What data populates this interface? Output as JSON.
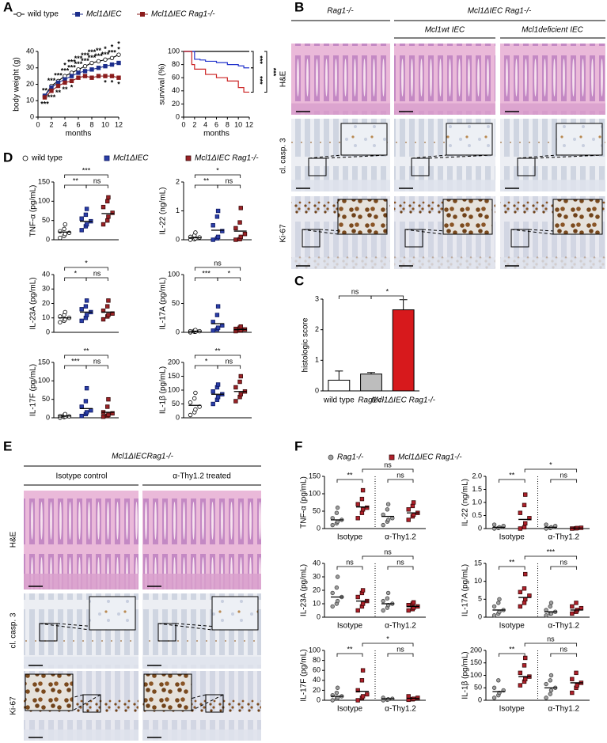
{
  "panel_labels": [
    "A",
    "B",
    "C",
    "D",
    "E",
    "F"
  ],
  "panel_b": {
    "headers": [
      "Rag1-/-",
      "Mcl1ΔIEC Rag1-/-"
    ],
    "subheaders": [
      "Mcl1wt IEC",
      "Mcl1deficient IEC"
    ],
    "rows": [
      "H&E",
      "cl. casp. 3",
      "Ki-67"
    ]
  },
  "panel_e": {
    "header": "Mcl1ΔIECRag1-/-",
    "columns": [
      "Isotype control",
      "α-Thy1.2 treated"
    ],
    "rows": [
      "H&E",
      "cl. casp. 3",
      "Ki-67"
    ]
  },
  "chart_data": [
    {
      "type": "line",
      "ylabel": "body weight (g)",
      "xlabel": "months",
      "legend": "top",
      "x": [
        1,
        2,
        3,
        4,
        5,
        6,
        7,
        8,
        9,
        10,
        11,
        12
      ],
      "xlim": [
        0,
        12
      ],
      "xticks": [
        0,
        2,
        4,
        6,
        8,
        10,
        12
      ],
      "ylim": [
        0,
        40
      ],
      "yticks": [
        0,
        10,
        20,
        30,
        40
      ],
      "series": [
        {
          "name": "wild type",
          "color": "#000000",
          "fill": "#ffffff",
          "marker": "circle",
          "values": [
            13,
            19,
            22,
            25,
            27,
            29,
            31,
            33,
            34,
            35,
            36,
            38
          ]
        },
        {
          "name": "Mcl1ΔIEC",
          "color": "#1c2e8c",
          "fill": "#1c2e8c",
          "marker": "square",
          "values": [
            13,
            18,
            21,
            23,
            25,
            27,
            28,
            29,
            30,
            31,
            32,
            33
          ]
        },
        {
          "name": "Mcl1ΔIEC Rag1-/-",
          "color": "#8b1c1c",
          "fill": "#8b1c1c",
          "marker": "square",
          "values": [
            12,
            16,
            19,
            21,
            22,
            24,
            25,
            24,
            25,
            25,
            25,
            24
          ]
        }
      ],
      "significance": [
        {
          "color": "#d62728",
          "labels": [
            "**",
            "***",
            "***",
            "***",
            "***",
            "***",
            "***",
            "***",
            "***",
            "***",
            "***",
            "*"
          ]
        },
        {
          "color": "#3333cc",
          "labels": [
            null,
            null,
            null,
            "*",
            "***",
            "***",
            "***",
            "***",
            "**",
            "*",
            "*",
            "*"
          ]
        },
        {
          "color": "#a020c0",
          "labels": [
            "***",
            "***",
            "**",
            "**",
            "*",
            null,
            null,
            null,
            null,
            "*",
            "*",
            "*"
          ]
        }
      ]
    },
    {
      "type": "line",
      "step": true,
      "ylabel": "survival (%)",
      "xlabel": "months",
      "xlim": [
        0,
        12
      ],
      "xticks": [
        0,
        2,
        4,
        6,
        8,
        10,
        12
      ],
      "ylim": [
        0,
        100
      ],
      "yticks": [
        0,
        20,
        40,
        60,
        80,
        100
      ],
      "series": [
        {
          "color": "#000000",
          "x": [
            0,
            12
          ],
          "values": [
            100,
            100
          ]
        },
        {
          "color": "#2233cc",
          "x": [
            0,
            1,
            2,
            3,
            4,
            6,
            8,
            10,
            11,
            12
          ],
          "values": [
            100,
            100,
            88,
            87,
            85,
            83,
            80,
            78,
            75,
            75
          ]
        },
        {
          "color": "#cc2222",
          "x": [
            0,
            1,
            1.5,
            2,
            4,
            6,
            8,
            10,
            11,
            12
          ],
          "values": [
            100,
            100,
            80,
            73,
            65,
            60,
            55,
            45,
            38,
            38
          ]
        }
      ],
      "significance": [
        {
          "label": "***",
          "color": "#2233cc"
        },
        {
          "label": "***",
          "color": "#a020c0"
        },
        {
          "label": "***",
          "color": "#cc2222"
        }
      ]
    },
    {
      "type": "bar",
      "ylabel": "histologic score",
      "categories": [
        "wild type",
        "Rag1-/-",
        "Mcl1ΔIEC Rag1-/-"
      ],
      "values": [
        0.35,
        0.55,
        2.65
      ],
      "errors": [
        0.3,
        0.05,
        0.33
      ],
      "colors": [
        "#ffffff",
        "#bdbdbd",
        "#d7191c"
      ],
      "ylim": [
        0,
        3
      ],
      "yticks": [
        0,
        1,
        2,
        3
      ],
      "brackets": [
        "ns",
        "*"
      ]
    },
    {
      "type": "dotplot",
      "series": [
        {
          "name": "wild type",
          "color": "#000000",
          "fill": "#ffffff",
          "marker": "circle"
        },
        {
          "name": "Mcl1ΔIEC",
          "color": "#0d1760",
          "fill": "#2a3ea8",
          "marker": "square"
        },
        {
          "name": "Mcl1ΔIEC Rag1-/-",
          "color": "#3a0a0a",
          "fill": "#9b2226",
          "marker": "square"
        }
      ],
      "plots": [
        {
          "ylabel": "TNF-α (pg/mL)",
          "ylim": [
            0,
            150
          ],
          "yticks": [
            0,
            50,
            100,
            150
          ],
          "brackets": [
            "**",
            "ns",
            "***"
          ],
          "groups": [
            [
              5,
              10,
              15,
              18,
              22,
              28,
              40
            ],
            [
              25,
              35,
              40,
              48,
              55,
              65,
              80
            ],
            [
              40,
              50,
              60,
              70,
              85,
              100,
              110
            ]
          ],
          "means": [
            20,
            48,
            68
          ]
        },
        {
          "ylabel": "IL-22 (ng/mL)",
          "ylim": [
            0,
            2
          ],
          "yticks": [
            0,
            1,
            2
          ],
          "brackets": [
            "**",
            "ns",
            "*"
          ],
          "groups": [
            [
              0,
              0.02,
              0.05,
              0.08,
              0.1,
              0.15,
              0.25
            ],
            [
              0,
              0.05,
              0.1,
              0.3,
              0.5,
              0.8,
              1.0
            ],
            [
              0,
              0.02,
              0.1,
              0.2,
              0.4,
              0.6,
              1.1
            ]
          ],
          "means": [
            0.07,
            0.33,
            0.3
          ]
        },
        {
          "ylabel": "IL-23A (pg/mL)",
          "ylim": [
            0,
            40
          ],
          "yticks": [
            0,
            10,
            20,
            30,
            40
          ],
          "brackets": [
            "*",
            "ns",
            "*"
          ],
          "groups": [
            [
              7,
              8,
              9,
              10,
              11,
              12,
              14
            ],
            [
              8,
              10,
              12,
              14,
              16,
              18,
              22
            ],
            [
              9,
              11,
              12,
              13,
              15,
              18,
              22
            ]
          ],
          "means": [
            10,
            14,
            14
          ]
        },
        {
          "ylabel": "IL-17A (pg/mL)",
          "ylim": [
            0,
            100
          ],
          "yticks": [
            0,
            50,
            100
          ],
          "brackets": [
            "***",
            "*",
            "ns"
          ],
          "groups": [
            [
              0,
              1,
              1,
              2,
              2,
              3,
              4
            ],
            [
              3,
              5,
              8,
              12,
              18,
              30,
              45
            ],
            [
              2,
              3,
              4,
              5,
              6,
              8,
              10
            ]
          ],
          "means": [
            2,
            15,
            5
          ]
        },
        {
          "ylabel": "IL-17F (pg/mL)",
          "ylim": [
            0,
            150
          ],
          "yticks": [
            0,
            50,
            100,
            150
          ],
          "brackets": [
            "***",
            "ns",
            "**"
          ],
          "groups": [
            [
              0,
              2,
              3,
              4,
              5,
              7,
              10
            ],
            [
              5,
              10,
              15,
              20,
              30,
              45,
              80
            ],
            [
              3,
              5,
              8,
              12,
              15,
              30,
              50
            ]
          ],
          "means": [
            5,
            25,
            15
          ]
        },
        {
          "ylabel": "IL-1β (pg/mL)",
          "ylim": [
            0,
            200
          ],
          "yticks": [
            0,
            50,
            100,
            150,
            200
          ],
          "brackets": [
            "*",
            "ns",
            "**"
          ],
          "groups": [
            [
              10,
              20,
              30,
              40,
              55,
              70,
              90
            ],
            [
              50,
              65,
              75,
              85,
              95,
              110,
              120
            ],
            [
              60,
              75,
              85,
              95,
              110,
              130,
              150
            ]
          ],
          "means": [
            45,
            85,
            95
          ]
        }
      ]
    },
    {
      "type": "dotplot",
      "categories": [
        "Isotype",
        "α-Thy1.2"
      ],
      "series": [
        {
          "name": "Rag1-/-",
          "color": "#444444",
          "fill": "#a0a0a0",
          "marker": "circle"
        },
        {
          "name": "Mcl1ΔIEC Rag1-/-",
          "color": "#3a0a0a",
          "fill": "#b0202a",
          "marker": "square"
        }
      ],
      "plots": [
        {
          "ylabel": "TNF-α (pg/mL)",
          "ylim": [
            0,
            150
          ],
          "yticks": [
            0,
            50,
            100,
            150
          ],
          "brackets": [
            "**",
            "ns",
            "ns"
          ],
          "groups": [
            [
              10,
              15,
              20,
              25,
              30,
              45,
              60
            ],
            [
              30,
              45,
              55,
              60,
              70,
              85,
              110
            ],
            [
              10,
              20,
              25,
              30,
              40,
              55,
              70
            ],
            [
              25,
              35,
              40,
              45,
              55,
              65,
              75
            ]
          ],
          "means": [
            25,
            62,
            35,
            45
          ]
        },
        {
          "ylabel": "IL-22 (ng/mL)",
          "ylim": [
            0,
            2
          ],
          "yticks": [
            0,
            0.5,
            {
              "value": 1,
              "label": "1.0"
            },
            1.5,
            {
              "value": 2,
              "label": "2.0"
            }
          ],
          "brackets": [
            "**",
            "ns",
            "*"
          ],
          "groups": [
            [
              0,
              0.02,
              0.05,
              0.1,
              0.15
            ],
            [
              0,
              0.05,
              0.2,
              0.4,
              0.6,
              0.9,
              1.3
            ],
            [
              0,
              0.02,
              0.05,
              0.1,
              0.15
            ],
            [
              0,
              0.01,
              0.02,
              0.03
            ]
          ],
          "means": [
            0.05,
            0.35,
            0.05,
            0.02
          ]
        },
        {
          "ylabel": "IL-23A (pg/mL)",
          "ylim": [
            0,
            40
          ],
          "yticks": [
            0,
            10,
            20,
            30,
            40
          ],
          "brackets": [
            "ns",
            "ns",
            "ns"
          ],
          "groups": [
            [
              8,
              10,
              12,
              15,
              18,
              22,
              30
            ],
            [
              5,
              8,
              10,
              12,
              15,
              18,
              20
            ],
            [
              5,
              7,
              9,
              10,
              12,
              14,
              18
            ],
            [
              5,
              6,
              7,
              8,
              9,
              10,
              11
            ]
          ],
          "means": [
            15,
            12,
            10,
            8
          ]
        },
        {
          "ylabel": "IL-17A (pg/mL)",
          "ylim": [
            0,
            15
          ],
          "yticks": [
            0,
            5,
            10,
            15
          ],
          "brackets": [
            "**",
            "ns",
            "***"
          ],
          "groups": [
            [
              0.5,
              1,
              1.5,
              2,
              3,
              4,
              5
            ],
            [
              3,
              4,
              5,
              6,
              7,
              8,
              12
            ],
            [
              0.5,
              1,
              1,
              1.5,
              2,
              3,
              4
            ],
            [
              1,
              1.5,
              2,
              2.5,
              3,
              4
            ]
          ],
          "means": [
            2,
            5.5,
            1.5,
            2
          ]
        },
        {
          "ylabel": "IL-17F (pg/mL)",
          "ylim": [
            0,
            100
          ],
          "yticks": [
            0,
            20,
            40,
            60,
            80,
            100
          ],
          "brackets": [
            "**",
            "ns",
            "*"
          ],
          "groups": [
            [
              0,
              3,
              5,
              8,
              10,
              15,
              25
            ],
            [
              0,
              5,
              8,
              12,
              20,
              40,
              60
            ],
            [
              0,
              1,
              2,
              3,
              5
            ],
            [
              1,
              2,
              3,
              5,
              8
            ]
          ],
          "means": [
            8,
            18,
            3,
            4
          ]
        },
        {
          "ylabel": "IL-1β (pg/mL)",
          "ylim": [
            0,
            200
          ],
          "yticks": [
            0,
            50,
            100,
            150,
            200
          ],
          "brackets": [
            "**",
            "ns",
            "ns"
          ],
          "groups": [
            [
              10,
              20,
              30,
              40,
              50,
              80
            ],
            [
              60,
              75,
              85,
              95,
              110,
              140,
              170
            ],
            [
              10,
              25,
              40,
              50,
              65,
              80,
              100
            ],
            [
              30,
              50,
              60,
              70,
              85,
              110
            ]
          ],
          "means": [
            35,
            95,
            50,
            70
          ]
        }
      ]
    }
  ]
}
